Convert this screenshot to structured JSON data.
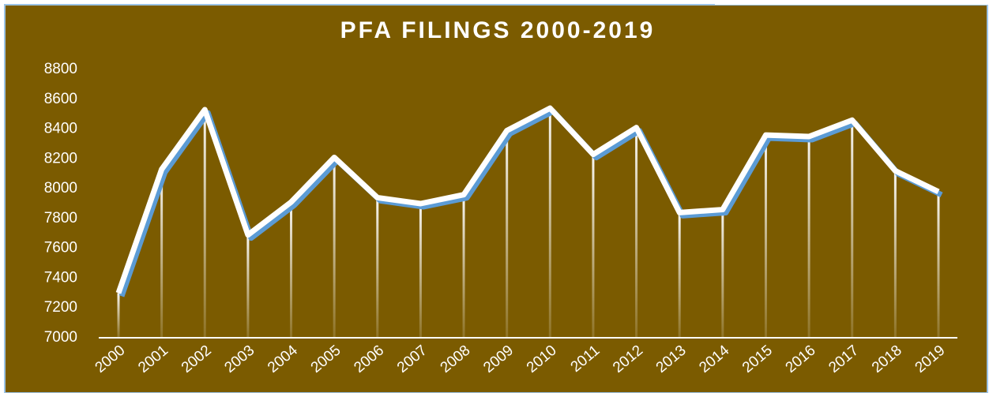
{
  "chart_data": {
    "type": "line",
    "title": "PFA FILINGS 2000-2019",
    "categories": [
      "2000",
      "2001",
      "2002",
      "2003",
      "2004",
      "2005",
      "2006",
      "2007",
      "2008",
      "2009",
      "2010",
      "2011",
      "2012",
      "2013",
      "2014",
      "2015",
      "2016",
      "2017",
      "2018",
      "2019"
    ],
    "values": [
      7300,
      8130,
      8530,
      7690,
      7910,
      8210,
      7940,
      7900,
      7960,
      8390,
      8540,
      8230,
      8410,
      7840,
      7860,
      8360,
      8350,
      8460,
      8120,
      7980
    ],
    "color": "#ffffff",
    "ylim": [
      7000,
      8800
    ],
    "yticks": [
      7000,
      7200,
      7400,
      7600,
      7800,
      8000,
      8200,
      8400,
      8600,
      8800
    ],
    "grid": false
  }
}
